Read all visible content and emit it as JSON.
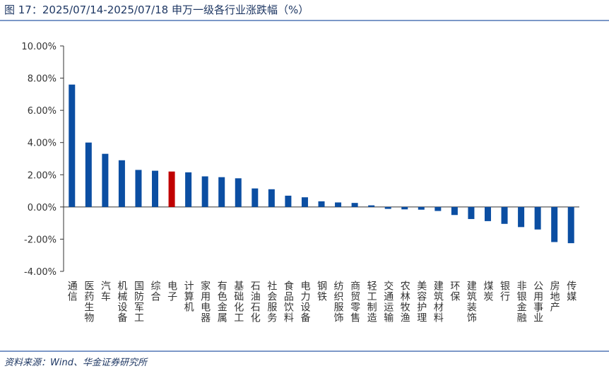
{
  "chart_data": {
    "type": "bar",
    "title": "图 17：2025/07/14-2025/07/18 申万一级各行业涨跌幅（%）",
    "source": "资料来源：Wind、华金证券研究所",
    "categories": [
      "通信",
      "医药生物",
      "汽车",
      "机械设备",
      "国防军工",
      "综合",
      "电子",
      "计算机",
      "家用电器",
      "有色金属",
      "基础化工",
      "石油石化",
      "社会服务",
      "食品饮料",
      "电力设备",
      "钢铁",
      "纺织服饰",
      "商贸零售",
      "轻工制造",
      "交通运输",
      "农林牧渔",
      "美容护理",
      "建筑材料",
      "环保",
      "建筑装饰",
      "煤炭",
      "银行",
      "非银金融",
      "公用事业",
      "房地产",
      "传媒"
    ],
    "values": [
      7.6,
      4.0,
      3.3,
      2.9,
      2.3,
      2.25,
      2.2,
      2.15,
      1.9,
      1.85,
      1.78,
      1.15,
      1.1,
      0.7,
      0.6,
      0.35,
      0.28,
      0.25,
      0.1,
      -0.12,
      -0.15,
      -0.17,
      -0.25,
      -0.5,
      -0.75,
      -0.88,
      -1.05,
      -1.25,
      -1.4,
      -2.18,
      -2.25
    ],
    "colors": [
      "#0b4ea2",
      "#0b4ea2",
      "#0b4ea2",
      "#0b4ea2",
      "#0b4ea2",
      "#0b4ea2",
      "#c00000",
      "#0b4ea2",
      "#0b4ea2",
      "#0b4ea2",
      "#0b4ea2",
      "#0b4ea2",
      "#0b4ea2",
      "#0b4ea2",
      "#0b4ea2",
      "#0b4ea2",
      "#0b4ea2",
      "#0b4ea2",
      "#0b4ea2",
      "#0b4ea2",
      "#0b4ea2",
      "#0b4ea2",
      "#0b4ea2",
      "#0b4ea2",
      "#0b4ea2",
      "#0b4ea2",
      "#0b4ea2",
      "#0b4ea2",
      "#0b4ea2",
      "#0b4ea2",
      "#0b4ea2"
    ],
    "ylim": [
      -4,
      10
    ],
    "yticks": [
      {
        "value": -4,
        "label": "-4.00%"
      },
      {
        "value": -2,
        "label": "-2.00%"
      },
      {
        "value": 0,
        "label": "0.00%"
      },
      {
        "value": 2,
        "label": "2.00%"
      },
      {
        "value": 4,
        "label": "4.00%"
      },
      {
        "value": 6,
        "label": "6.00%"
      },
      {
        "value": 8,
        "label": "8.00%"
      },
      {
        "value": 10,
        "label": "10.00%"
      }
    ],
    "grid": false
  }
}
